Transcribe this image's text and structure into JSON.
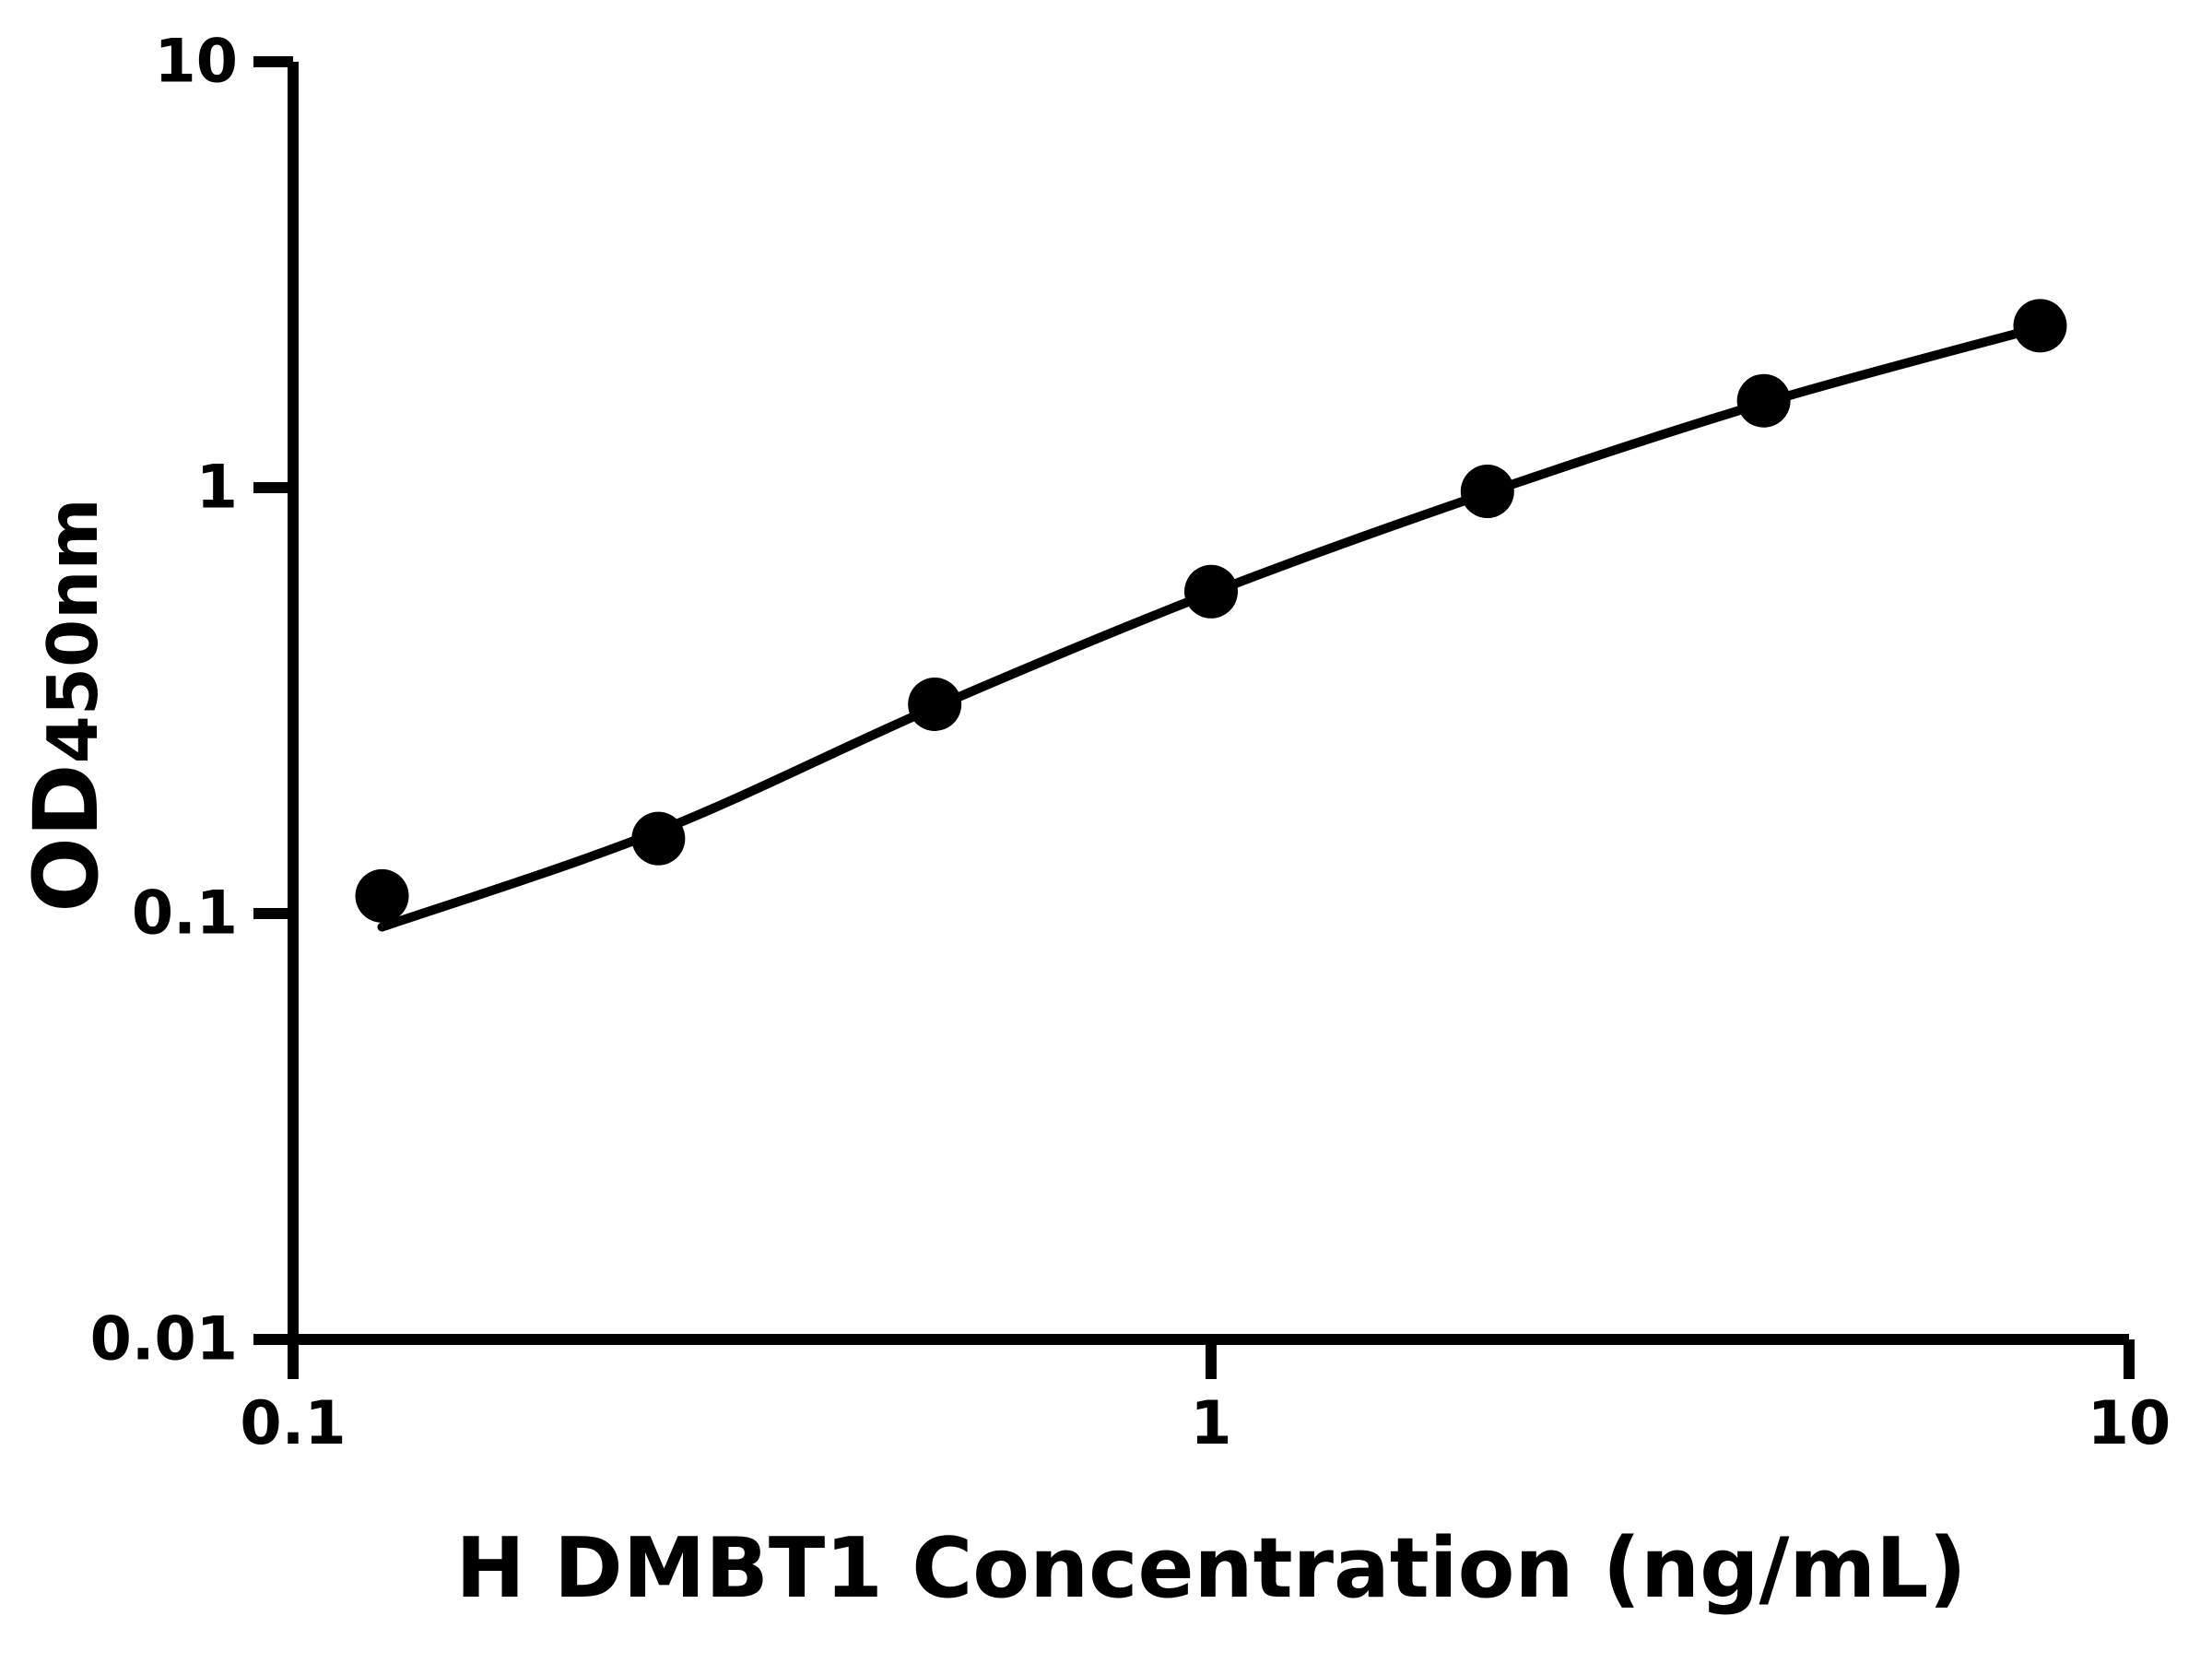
{
  "figure": {
    "background_color": "#ffffff",
    "ink_color": "#000000"
  },
  "chart_data": {
    "type": "scatter",
    "title": "",
    "xlabel": "H DMBT1 Concentration (ng/mL)",
    "ylabel": "OD",
    "ylabel_subscript": "450nm",
    "x_scale": "log",
    "y_scale": "log",
    "xlim": [
      0.1,
      10
    ],
    "ylim": [
      0.01,
      10
    ],
    "grid": "off",
    "legend": "none",
    "x_ticks": [
      {
        "value": 0.1,
        "label": "0.1"
      },
      {
        "value": 1,
        "label": "1"
      },
      {
        "value": 10,
        "label": "10"
      }
    ],
    "y_ticks": [
      {
        "value": 0.01,
        "label": "0.01"
      },
      {
        "value": 0.1,
        "label": "0.1"
      },
      {
        "value": 1,
        "label": "1"
      },
      {
        "value": 10,
        "label": "10"
      }
    ],
    "series": [
      {
        "name": "standard_points",
        "type": "scatter",
        "marker": "filled-circle",
        "color": "#000000",
        "x": [
          0.125,
          0.25,
          0.5,
          1,
          2,
          4,
          8
        ],
        "y": [
          0.11,
          0.15,
          0.31,
          0.57,
          0.98,
          1.6,
          2.4
        ]
      },
      {
        "name": "fitted_curve",
        "type": "line",
        "color": "#000000",
        "x": [
          0.125,
          0.25,
          0.5,
          1,
          2,
          4,
          8
        ],
        "y": [
          0.093,
          0.156,
          0.305,
          0.566,
          0.972,
          1.58,
          2.38
        ]
      }
    ]
  }
}
